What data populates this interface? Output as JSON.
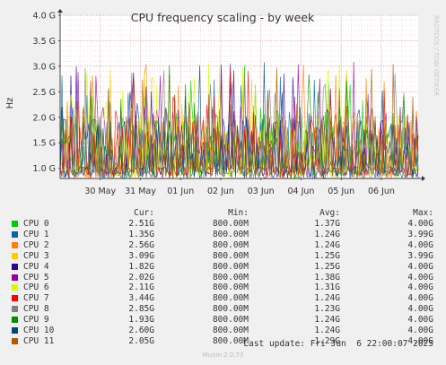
{
  "chart_data": {
    "type": "line",
    "title": "CPU frequency scaling - by week",
    "ylabel": "Hz",
    "watermark": "RRDTOOL / TOBI OETIKER",
    "yticks": [
      "1.0 G",
      "1.5 G",
      "2.0 G",
      "2.5 G",
      "3.0 G",
      "3.5 G",
      "4.0 G"
    ],
    "ytick_values": [
      1.0,
      1.5,
      2.0,
      2.5,
      3.0,
      3.5,
      4.0
    ],
    "ylim": [
      0.8,
      4.0
    ],
    "x_labels": [
      "30 May",
      "31 May",
      "01 Jun",
      "02 Jun",
      "03 Jun",
      "04 Jun",
      "05 Jun",
      "06 Jun"
    ],
    "xlim": [
      "2025-05-29 00:00",
      "2025-06-06 22:00"
    ],
    "grid": true,
    "series": [
      {
        "name": "CPU 0",
        "color": "#00cc00",
        "cur": "2.51G",
        "min": "800.00M",
        "avg": "1.37G",
        "max": "4.00G"
      },
      {
        "name": "CPU 1",
        "color": "#0066b3",
        "cur": "1.35G",
        "min": "800.00M",
        "avg": "1.24G",
        "max": "3.99G"
      },
      {
        "name": "CPU 2",
        "color": "#ff8000",
        "cur": "2.56G",
        "min": "800.00M",
        "avg": "1.24G",
        "max": "4.00G"
      },
      {
        "name": "CPU 3",
        "color": "#ffcc00",
        "cur": "3.09G",
        "min": "800.00M",
        "avg": "1.25G",
        "max": "3.99G"
      },
      {
        "name": "CPU 4",
        "color": "#330099",
        "cur": "1.82G",
        "min": "800.00M",
        "avg": "1.25G",
        "max": "4.00G"
      },
      {
        "name": "CPU 5",
        "color": "#990099",
        "cur": "2.02G",
        "min": "800.00M",
        "avg": "1.38G",
        "max": "4.00G"
      },
      {
        "name": "CPU 6",
        "color": "#ccff00",
        "cur": "2.11G",
        "min": "800.00M",
        "avg": "1.31G",
        "max": "4.00G"
      },
      {
        "name": "CPU 7",
        "color": "#ff0000",
        "cur": "3.44G",
        "min": "800.00M",
        "avg": "1.24G",
        "max": "4.00G"
      },
      {
        "name": "CPU 8",
        "color": "#808080",
        "cur": "2.85G",
        "min": "800.00M",
        "avg": "1.23G",
        "max": "4.00G"
      },
      {
        "name": "CPU 9",
        "color": "#008f00",
        "cur": "1.93G",
        "min": "800.00M",
        "avg": "1.24G",
        "max": "4.00G"
      },
      {
        "name": "CPU 10",
        "color": "#00487d",
        "cur": "2.60G",
        "min": "800.00M",
        "avg": "1.24G",
        "max": "4.00G"
      },
      {
        "name": "CPU 11",
        "color": "#b35a00",
        "cur": "2.05G",
        "min": "800.00M",
        "avg": "1.29G",
        "max": "4.00G"
      }
    ]
  },
  "legend_headers": {
    "cur": "Cur:",
    "min": "Min:",
    "avg": "Avg:",
    "max": "Max:"
  },
  "last_update": "Last update: Fri Jun  6 22:00:07 2025",
  "footer": "Munin 2.0.73"
}
